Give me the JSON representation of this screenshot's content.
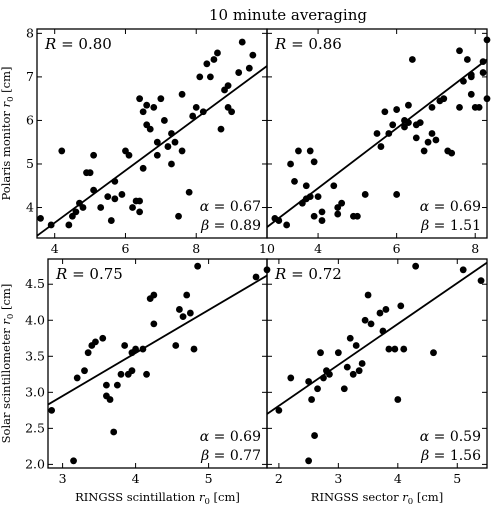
{
  "figure": {
    "title": "10 minute averaging"
  },
  "chart_data": [
    {
      "type": "scatter",
      "title": "",
      "xlabel": "",
      "ylabel": "Polaris monitor r₀ [cm]",
      "xlim": [
        3.5,
        10.0
      ],
      "ylim": [
        3.3,
        8.1
      ],
      "xticks": [
        4,
        6,
        8,
        10
      ],
      "yticks": [
        4,
        5,
        6,
        7,
        8
      ],
      "x_tick_labels": [
        "4",
        "6",
        "8",
        "10"
      ],
      "y_tick_labels": [
        "4",
        "5",
        "6",
        "7",
        "8"
      ],
      "r_label": "R = 0.80",
      "alpha_label": "α = 0.67",
      "beta_label": "β = 0.89",
      "fit_line": {
        "x": [
          3.5,
          10.0
        ],
        "y": [
          3.35,
          7.25
        ]
      },
      "points": [
        [
          3.6,
          3.75
        ],
        [
          3.9,
          3.6
        ],
        [
          4.2,
          5.3
        ],
        [
          4.4,
          3.6
        ],
        [
          4.5,
          3.8
        ],
        [
          4.6,
          3.9
        ],
        [
          4.7,
          4.1
        ],
        [
          4.8,
          4.0
        ],
        [
          4.9,
          4.8
        ],
        [
          5.0,
          4.8
        ],
        [
          5.1,
          5.2
        ],
        [
          5.1,
          4.4
        ],
        [
          5.3,
          4.0
        ],
        [
          5.5,
          4.25
        ],
        [
          5.6,
          3.7
        ],
        [
          5.7,
          4.2
        ],
        [
          5.7,
          4.6
        ],
        [
          5.9,
          4.3
        ],
        [
          6.0,
          5.3
        ],
        [
          6.1,
          5.2
        ],
        [
          6.2,
          4.0
        ],
        [
          6.3,
          4.15
        ],
        [
          6.4,
          4.15
        ],
        [
          6.4,
          3.9
        ],
        [
          6.4,
          6.5
        ],
        [
          6.5,
          6.2
        ],
        [
          6.5,
          4.9
        ],
        [
          6.6,
          6.35
        ],
        [
          6.6,
          5.9
        ],
        [
          6.7,
          5.8
        ],
        [
          6.8,
          6.3
        ],
        [
          6.9,
          5.5
        ],
        [
          6.9,
          5.2
        ],
        [
          7.0,
          6.5
        ],
        [
          7.1,
          6.0
        ],
        [
          7.2,
          5.4
        ],
        [
          7.3,
          5.7
        ],
        [
          7.3,
          5.0
        ],
        [
          7.4,
          5.5
        ],
        [
          7.5,
          3.8
        ],
        [
          7.6,
          6.6
        ],
        [
          7.6,
          5.3
        ],
        [
          7.8,
          4.35
        ],
        [
          7.9,
          6.1
        ],
        [
          8.0,
          6.3
        ],
        [
          8.1,
          7.0
        ],
        [
          8.2,
          6.2
        ],
        [
          8.3,
          7.3
        ],
        [
          8.4,
          7.0
        ],
        [
          8.5,
          7.4
        ],
        [
          8.6,
          7.55
        ],
        [
          8.7,
          5.8
        ],
        [
          8.8,
          6.7
        ],
        [
          8.9,
          6.8
        ],
        [
          8.9,
          6.3
        ],
        [
          9.0,
          6.2
        ],
        [
          9.2,
          7.1
        ],
        [
          9.3,
          7.8
        ],
        [
          9.5,
          7.2
        ],
        [
          9.6,
          7.5
        ]
      ]
    },
    {
      "type": "scatter",
      "title": "",
      "xlabel": "",
      "ylabel": "",
      "xlim": [
        2.7,
        8.3
      ],
      "ylim": [
        3.3,
        8.1
      ],
      "xticks": [
        4,
        6,
        8
      ],
      "yticks": [
        4,
        5,
        6,
        7,
        8
      ],
      "x_tick_labels": [
        "4",
        "6",
        "8"
      ],
      "y_tick_labels": [],
      "r_label": "R = 0.86",
      "alpha_label": "α = 0.69",
      "beta_label": "β = 1.51",
      "fit_line": {
        "x": [
          2.7,
          8.3
        ],
        "y": [
          3.55,
          7.4
        ]
      },
      "points": [
        [
          2.9,
          3.75
        ],
        [
          3.0,
          3.7
        ],
        [
          3.2,
          3.6
        ],
        [
          3.3,
          5.0
        ],
        [
          3.4,
          4.6
        ],
        [
          3.5,
          5.3
        ],
        [
          3.6,
          4.1
        ],
        [
          3.7,
          4.5
        ],
        [
          3.7,
          4.2
        ],
        [
          3.8,
          5.3
        ],
        [
          3.8,
          4.25
        ],
        [
          3.9,
          5.05
        ],
        [
          3.9,
          3.8
        ],
        [
          4.0,
          4.25
        ],
        [
          4.1,
          3.7
        ],
        [
          4.1,
          3.9
        ],
        [
          4.4,
          4.5
        ],
        [
          4.5,
          3.85
        ],
        [
          4.5,
          4.0
        ],
        [
          4.6,
          4.1
        ],
        [
          4.9,
          3.8
        ],
        [
          5.0,
          3.8
        ],
        [
          5.2,
          4.3
        ],
        [
          5.5,
          5.7
        ],
        [
          5.6,
          5.4
        ],
        [
          5.7,
          6.2
        ],
        [
          5.8,
          5.7
        ],
        [
          5.9,
          5.9
        ],
        [
          6.0,
          6.25
        ],
        [
          6.0,
          4.3
        ],
        [
          6.2,
          5.85
        ],
        [
          6.2,
          6.0
        ],
        [
          6.3,
          6.35
        ],
        [
          6.3,
          5.95
        ],
        [
          6.4,
          7.4
        ],
        [
          6.5,
          5.6
        ],
        [
          6.5,
          5.9
        ],
        [
          6.6,
          5.95
        ],
        [
          6.7,
          5.3
        ],
        [
          6.8,
          5.5
        ],
        [
          6.9,
          6.3
        ],
        [
          6.9,
          5.7
        ],
        [
          7.0,
          5.55
        ],
        [
          7.1,
          6.45
        ],
        [
          7.2,
          6.5
        ],
        [
          7.3,
          5.3
        ],
        [
          7.4,
          5.25
        ],
        [
          7.6,
          7.6
        ],
        [
          7.6,
          6.3
        ],
        [
          7.7,
          6.9
        ],
        [
          7.8,
          7.4
        ],
        [
          7.9,
          7.05
        ],
        [
          7.9,
          6.6
        ],
        [
          7.9,
          7.0
        ],
        [
          8.0,
          6.3
        ],
        [
          8.1,
          6.3
        ],
        [
          8.2,
          7.35
        ],
        [
          8.2,
          7.1
        ],
        [
          8.3,
          7.85
        ],
        [
          8.3,
          6.5
        ]
      ]
    },
    {
      "type": "scatter",
      "title": "",
      "xlabel": "RINGSS scintillation r₀ [cm]",
      "ylabel": "Solar scintillometer r₀ [cm]",
      "xlim": [
        2.8,
        5.8
      ],
      "ylim": [
        1.95,
        4.85
      ],
      "xticks": [
        3,
        4,
        5
      ],
      "yticks": [
        2.0,
        2.5,
        3.0,
        3.5,
        4.0,
        4.5
      ],
      "x_tick_labels": [
        "3",
        "4",
        "5"
      ],
      "y_tick_labels": [
        "2.0",
        "2.5",
        "3.0",
        "3.5",
        "4.0",
        "4.5"
      ],
      "r_label": "R = 0.75",
      "alpha_label": "α = 0.69",
      "beta_label": "β = 0.77",
      "fit_line": {
        "x": [
          2.8,
          5.8
        ],
        "y": [
          2.83,
          4.62
        ]
      },
      "points": [
        [
          2.85,
          2.75
        ],
        [
          3.15,
          2.05
        ],
        [
          3.2,
          3.2
        ],
        [
          3.3,
          3.3
        ],
        [
          3.35,
          3.55
        ],
        [
          3.4,
          3.65
        ],
        [
          3.45,
          3.7
        ],
        [
          3.55,
          3.75
        ],
        [
          3.6,
          2.95
        ],
        [
          3.6,
          3.1
        ],
        [
          3.65,
          2.9
        ],
        [
          3.7,
          2.45
        ],
        [
          3.75,
          3.1
        ],
        [
          3.8,
          3.25
        ],
        [
          3.85,
          3.65
        ],
        [
          3.9,
          3.25
        ],
        [
          3.95,
          3.3
        ],
        [
          3.95,
          3.55
        ],
        [
          4.0,
          3.6
        ],
        [
          4.1,
          3.6
        ],
        [
          4.15,
          3.25
        ],
        [
          4.2,
          4.3
        ],
        [
          4.25,
          4.35
        ],
        [
          4.25,
          3.95
        ],
        [
          4.55,
          3.65
        ],
        [
          4.6,
          4.15
        ],
        [
          4.65,
          4.05
        ],
        [
          4.7,
          4.35
        ],
        [
          4.75,
          4.1
        ],
        [
          4.8,
          3.6
        ],
        [
          4.85,
          4.75
        ],
        [
          5.65,
          4.6
        ],
        [
          5.8,
          4.7
        ]
      ]
    },
    {
      "type": "scatter",
      "title": "",
      "xlabel": "RINGSS sector r₀ [cm]",
      "ylabel": "",
      "xlim": [
        1.8,
        5.5
      ],
      "ylim": [
        1.95,
        4.85
      ],
      "xticks": [
        2,
        3,
        4,
        5
      ],
      "yticks": [
        2.0,
        2.5,
        3.0,
        3.5,
        4.0,
        4.5
      ],
      "x_tick_labels": [
        "2",
        "3",
        "4",
        "5"
      ],
      "y_tick_labels": [],
      "r_label": "R = 0.72",
      "alpha_label": "α = 0.59",
      "beta_label": "β = 1.56",
      "fit_line": {
        "x": [
          1.8,
          5.5
        ],
        "y": [
          2.7,
          4.8
        ]
      },
      "points": [
        [
          2.0,
          2.75
        ],
        [
          2.2,
          3.2
        ],
        [
          2.5,
          3.15
        ],
        [
          2.5,
          2.05
        ],
        [
          2.55,
          2.9
        ],
        [
          2.6,
          2.4
        ],
        [
          2.65,
          3.05
        ],
        [
          2.7,
          3.55
        ],
        [
          2.75,
          3.2
        ],
        [
          2.8,
          3.3
        ],
        [
          2.85,
          3.25
        ],
        [
          3.0,
          3.55
        ],
        [
          3.1,
          3.05
        ],
        [
          3.15,
          3.35
        ],
        [
          3.2,
          3.75
        ],
        [
          3.25,
          3.25
        ],
        [
          3.3,
          3.65
        ],
        [
          3.35,
          3.3
        ],
        [
          3.4,
          3.4
        ],
        [
          3.45,
          4.0
        ],
        [
          3.5,
          4.35
        ],
        [
          3.55,
          3.95
        ],
        [
          3.7,
          4.1
        ],
        [
          3.75,
          3.85
        ],
        [
          3.8,
          4.15
        ],
        [
          3.85,
          3.6
        ],
        [
          3.95,
          3.6
        ],
        [
          4.0,
          2.9
        ],
        [
          4.05,
          4.2
        ],
        [
          4.1,
          3.6
        ],
        [
          4.3,
          4.75
        ],
        [
          4.6,
          3.55
        ],
        [
          5.1,
          4.7
        ],
        [
          5.4,
          4.55
        ]
      ]
    }
  ]
}
